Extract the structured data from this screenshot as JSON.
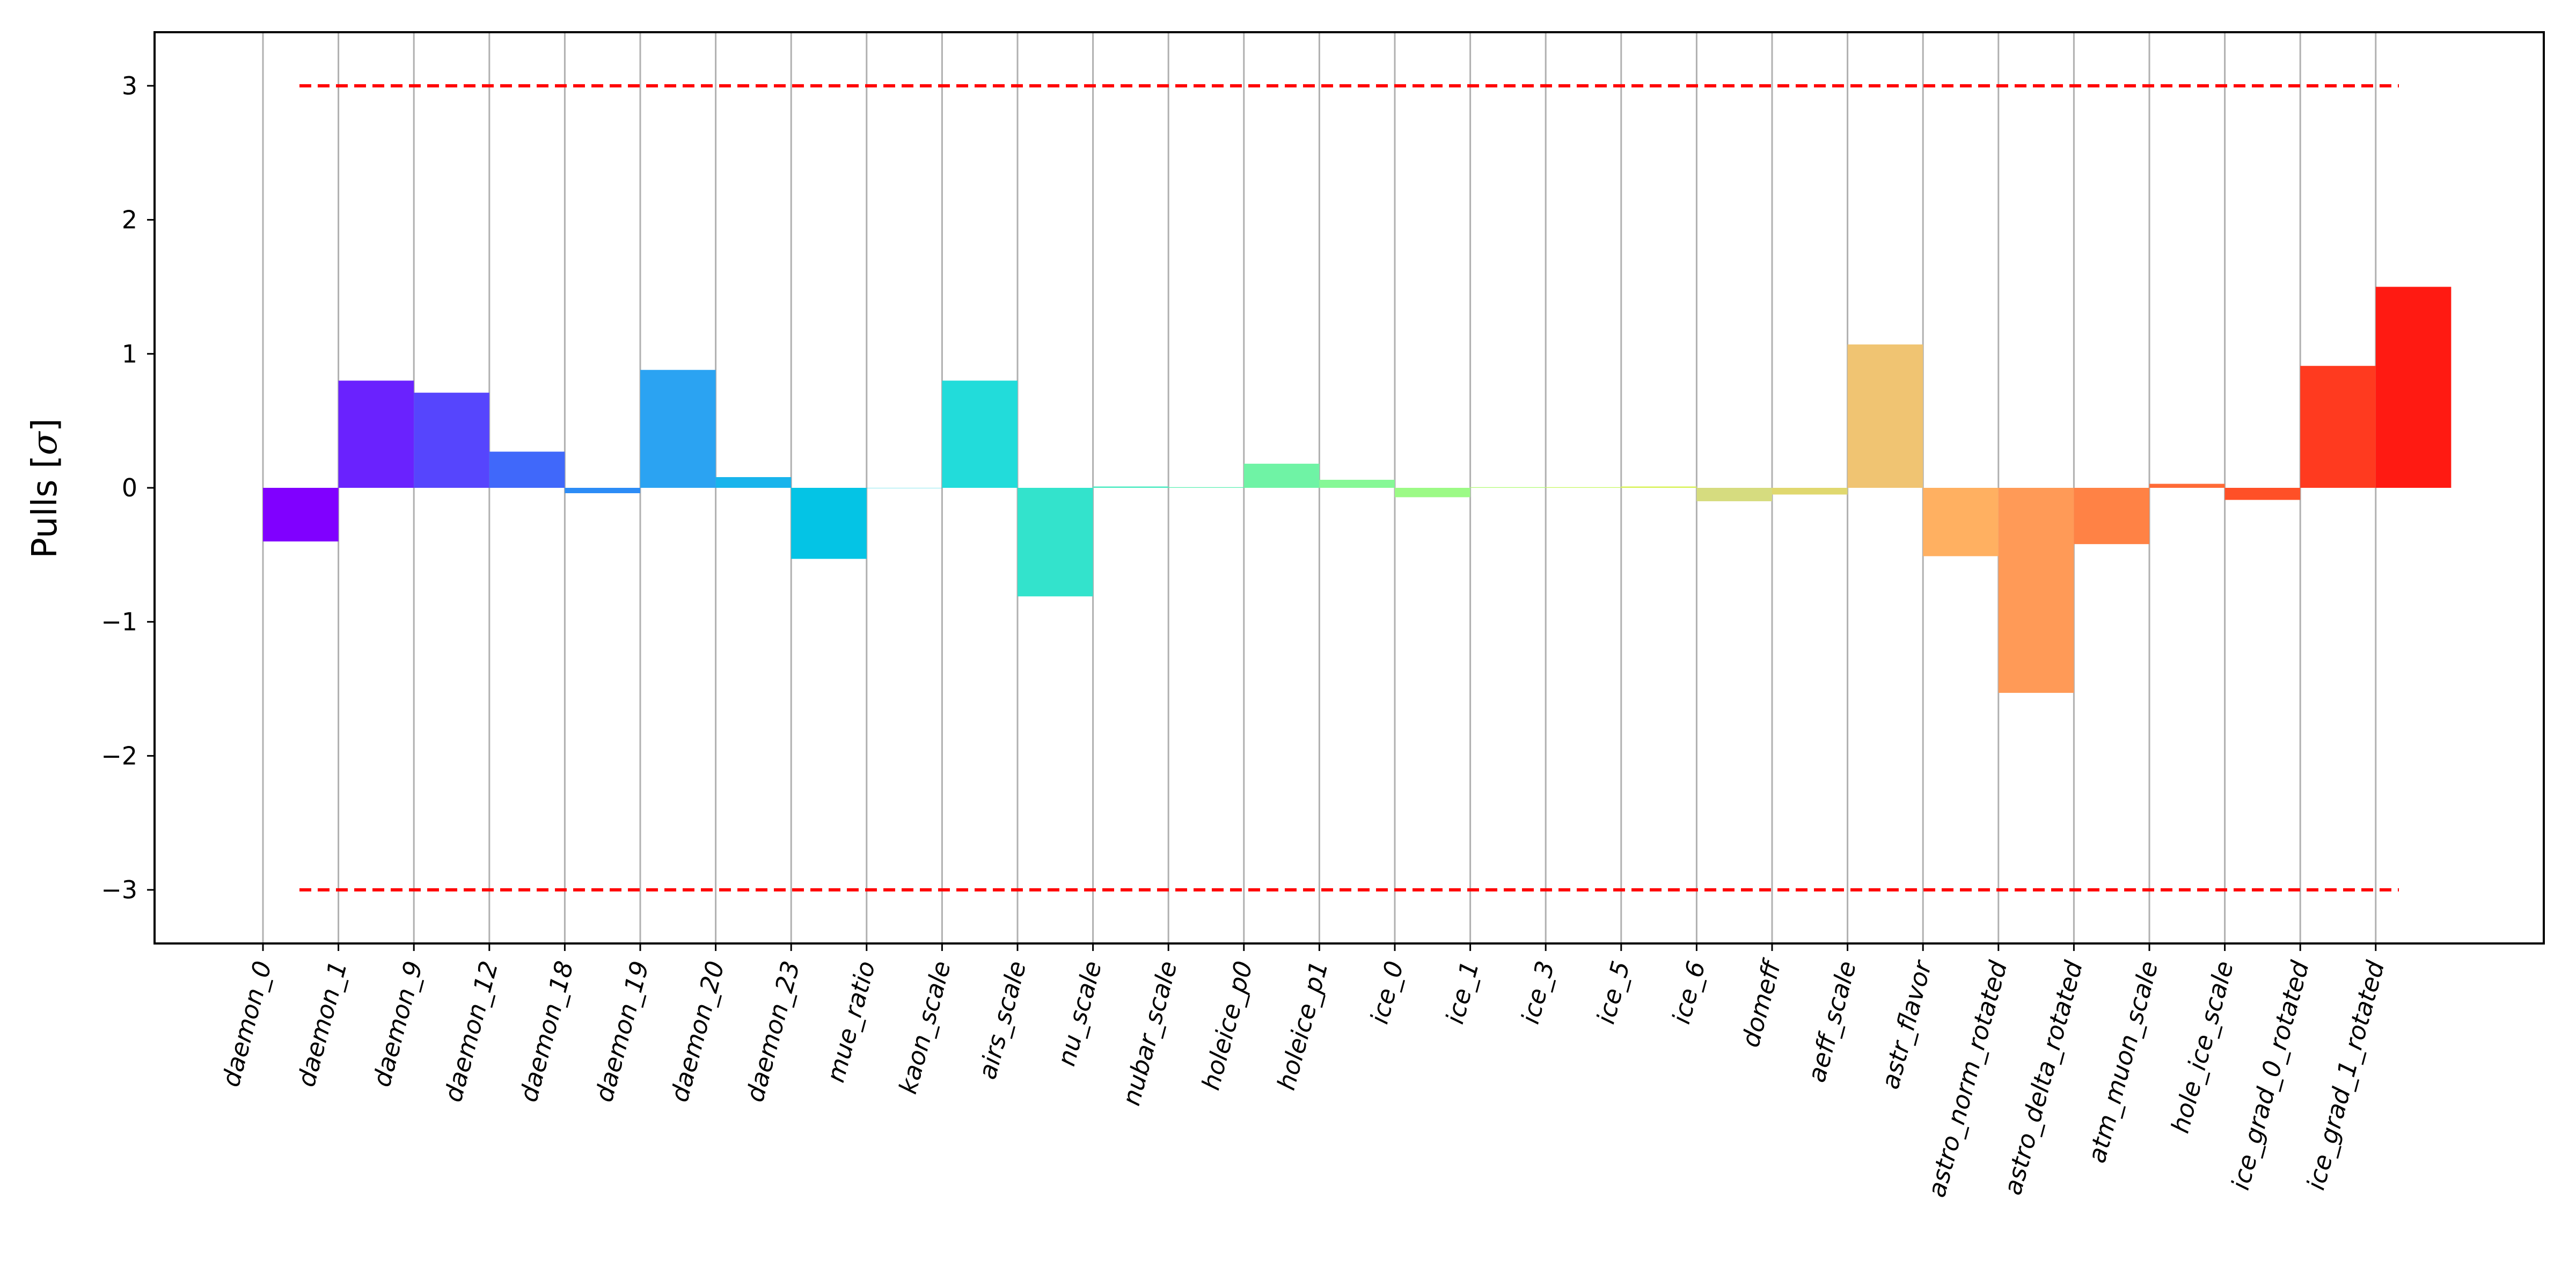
{
  "chart_data": {
    "type": "bar",
    "title": "",
    "xlabel": "",
    "ylabel_text": "Pulls [",
    "ylabel_symbol": "σ",
    "ylabel_close": "]",
    "ylim": [
      -3.4,
      3.4
    ],
    "yticks": [
      -3,
      -2,
      -1,
      0,
      1,
      2,
      3
    ],
    "ytick_labels": [
      "−3",
      "−2",
      "−1",
      "0",
      "1",
      "2",
      "3"
    ],
    "grid_x": true,
    "reference_lines": [
      3,
      -3
    ],
    "reference_line_color": "#ff0000",
    "categories": [
      "daemon_0",
      "daemon_1",
      "daemon_9",
      "daemon_12",
      "daemon_18",
      "daemon_19",
      "daemon_20",
      "daemon_23",
      "mue_ratio",
      "kaon_scale",
      "airs_scale",
      "nu_scale",
      "nubar_scale",
      "holeice_p0",
      "holeice_p1",
      "ice_0",
      "ice_1",
      "ice_3",
      "ice_5",
      "ice_6",
      "domeff",
      "aeff_scale",
      "astr_flavor",
      "astro_norm_rotated",
      "astro_delta_rotated",
      "atm_muon_scale",
      "hole_ice_scale",
      "ice_grad_0_rotated",
      "ice_grad_1_rotated"
    ],
    "values": [
      -0.4,
      0.8,
      0.71,
      0.27,
      -0.04,
      0.88,
      0.08,
      -0.53,
      0.0,
      0.8,
      -0.81,
      0.01,
      0.005,
      0.18,
      0.06,
      -0.07,
      0.005,
      0.005,
      0.01,
      -0.1,
      -0.05,
      1.07,
      -0.51,
      -1.53,
      -0.42,
      0.03,
      -0.09,
      0.91,
      1.5
    ],
    "colors": [
      "#8000ff",
      "#6a22fe",
      "#5645fd",
      "#4068fa",
      "#2c8cf6",
      "#2ba3f2",
      "#18b4ec",
      "#04c4e5",
      "#1fd0dd",
      "#22dcda",
      "#33e3cc",
      "#4aebc1",
      "#5ff0b4",
      "#6ff3a5",
      "#86f896",
      "#9cfa86",
      "#b2fb77",
      "#c7f864",
      "#d7f255",
      "#d6dc7f",
      "#e0d86f",
      "#f0c472",
      "#ffb061",
      "#ff9a57",
      "#ff8245",
      "#ff6a36",
      "#ff5027",
      "#ff3a1f",
      "#ff1a12"
    ]
  }
}
